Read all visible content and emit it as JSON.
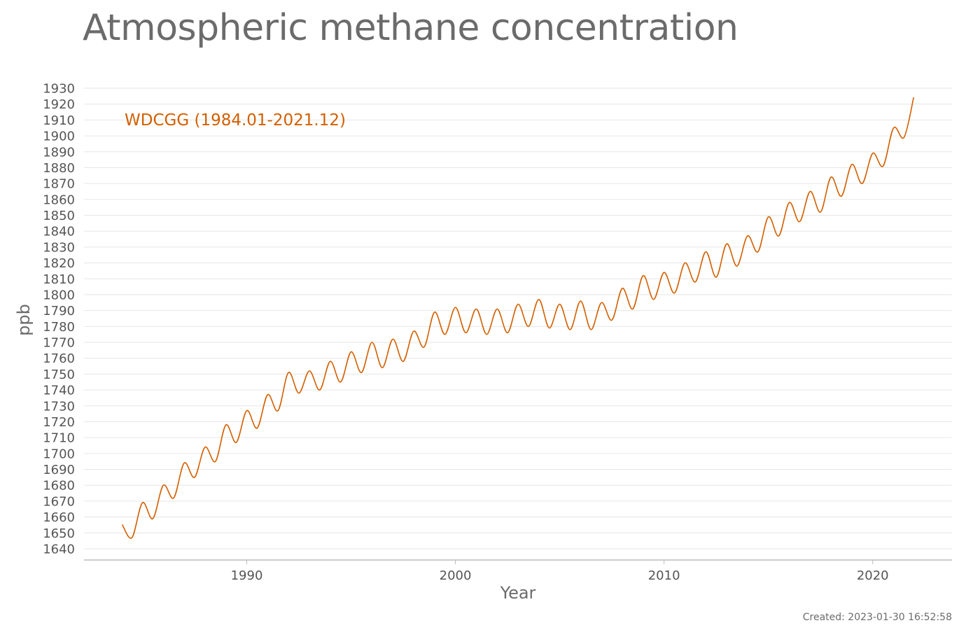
{
  "chart_data": {
    "type": "line",
    "title": "Atmospheric methane concentration",
    "xlabel": "Year",
    "ylabel": "ppb",
    "xlim": [
      1982.2,
      2023.8
    ],
    "ylim": [
      1640,
      1930
    ],
    "x_ticks": [
      1990,
      2000,
      2010,
      2020
    ],
    "y_ticks": [
      1640,
      1650,
      1660,
      1670,
      1680,
      1690,
      1700,
      1710,
      1720,
      1730,
      1740,
      1750,
      1760,
      1770,
      1780,
      1790,
      1800,
      1810,
      1820,
      1830,
      1840,
      1850,
      1860,
      1870,
      1880,
      1890,
      1900,
      1910,
      1920,
      1930
    ],
    "grid": true,
    "legend_position": "top-left",
    "series": [
      {
        "name": "WDCGG (1984.01-2021.12)",
        "color": "#d35f00",
        "x": [
          1984.04,
          1984.5,
          1985.0,
          1985.5,
          1986.0,
          1986.5,
          1987.0,
          1987.5,
          1988.0,
          1988.5,
          1989.0,
          1989.5,
          1990.0,
          1990.5,
          1991.0,
          1991.5,
          1992.0,
          1992.5,
          1993.0,
          1993.5,
          1994.0,
          1994.5,
          1995.0,
          1995.5,
          1996.0,
          1996.5,
          1997.0,
          1997.5,
          1998.0,
          1998.5,
          1999.0,
          1999.5,
          2000.0,
          2000.5,
          2001.0,
          2001.5,
          2002.0,
          2002.5,
          2003.0,
          2003.5,
          2004.0,
          2004.5,
          2005.0,
          2005.5,
          2006.0,
          2006.5,
          2007.0,
          2007.5,
          2008.0,
          2008.5,
          2009.0,
          2009.5,
          2010.0,
          2010.5,
          2011.0,
          2011.5,
          2012.0,
          2012.5,
          2013.0,
          2013.5,
          2014.0,
          2014.5,
          2015.0,
          2015.5,
          2016.0,
          2016.5,
          2017.0,
          2017.5,
          2018.0,
          2018.5,
          2019.0,
          2019.5,
          2020.0,
          2020.5,
          2021.0,
          2021.5,
          2021.96
        ],
        "values": [
          1655,
          1647,
          1669,
          1659,
          1680,
          1672,
          1694,
          1685,
          1704,
          1695,
          1718,
          1707,
          1727,
          1716,
          1737,
          1727,
          1751,
          1738,
          1752,
          1740,
          1758,
          1745,
          1764,
          1751,
          1770,
          1754,
          1772,
          1758,
          1777,
          1767,
          1789,
          1775,
          1792,
          1776,
          1791,
          1775,
          1791,
          1776,
          1794,
          1780,
          1797,
          1779,
          1794,
          1778,
          1796,
          1778,
          1795,
          1784,
          1804,
          1791,
          1812,
          1797,
          1814,
          1801,
          1820,
          1808,
          1827,
          1811,
          1832,
          1818,
          1837,
          1827,
          1849,
          1837,
          1858,
          1846,
          1865,
          1852,
          1874,
          1862,
          1882,
          1870,
          1889,
          1881,
          1905,
          1899,
          1924
        ]
      }
    ]
  },
  "footer": {
    "created": "Created: 2023-01-30 16:52:58"
  }
}
